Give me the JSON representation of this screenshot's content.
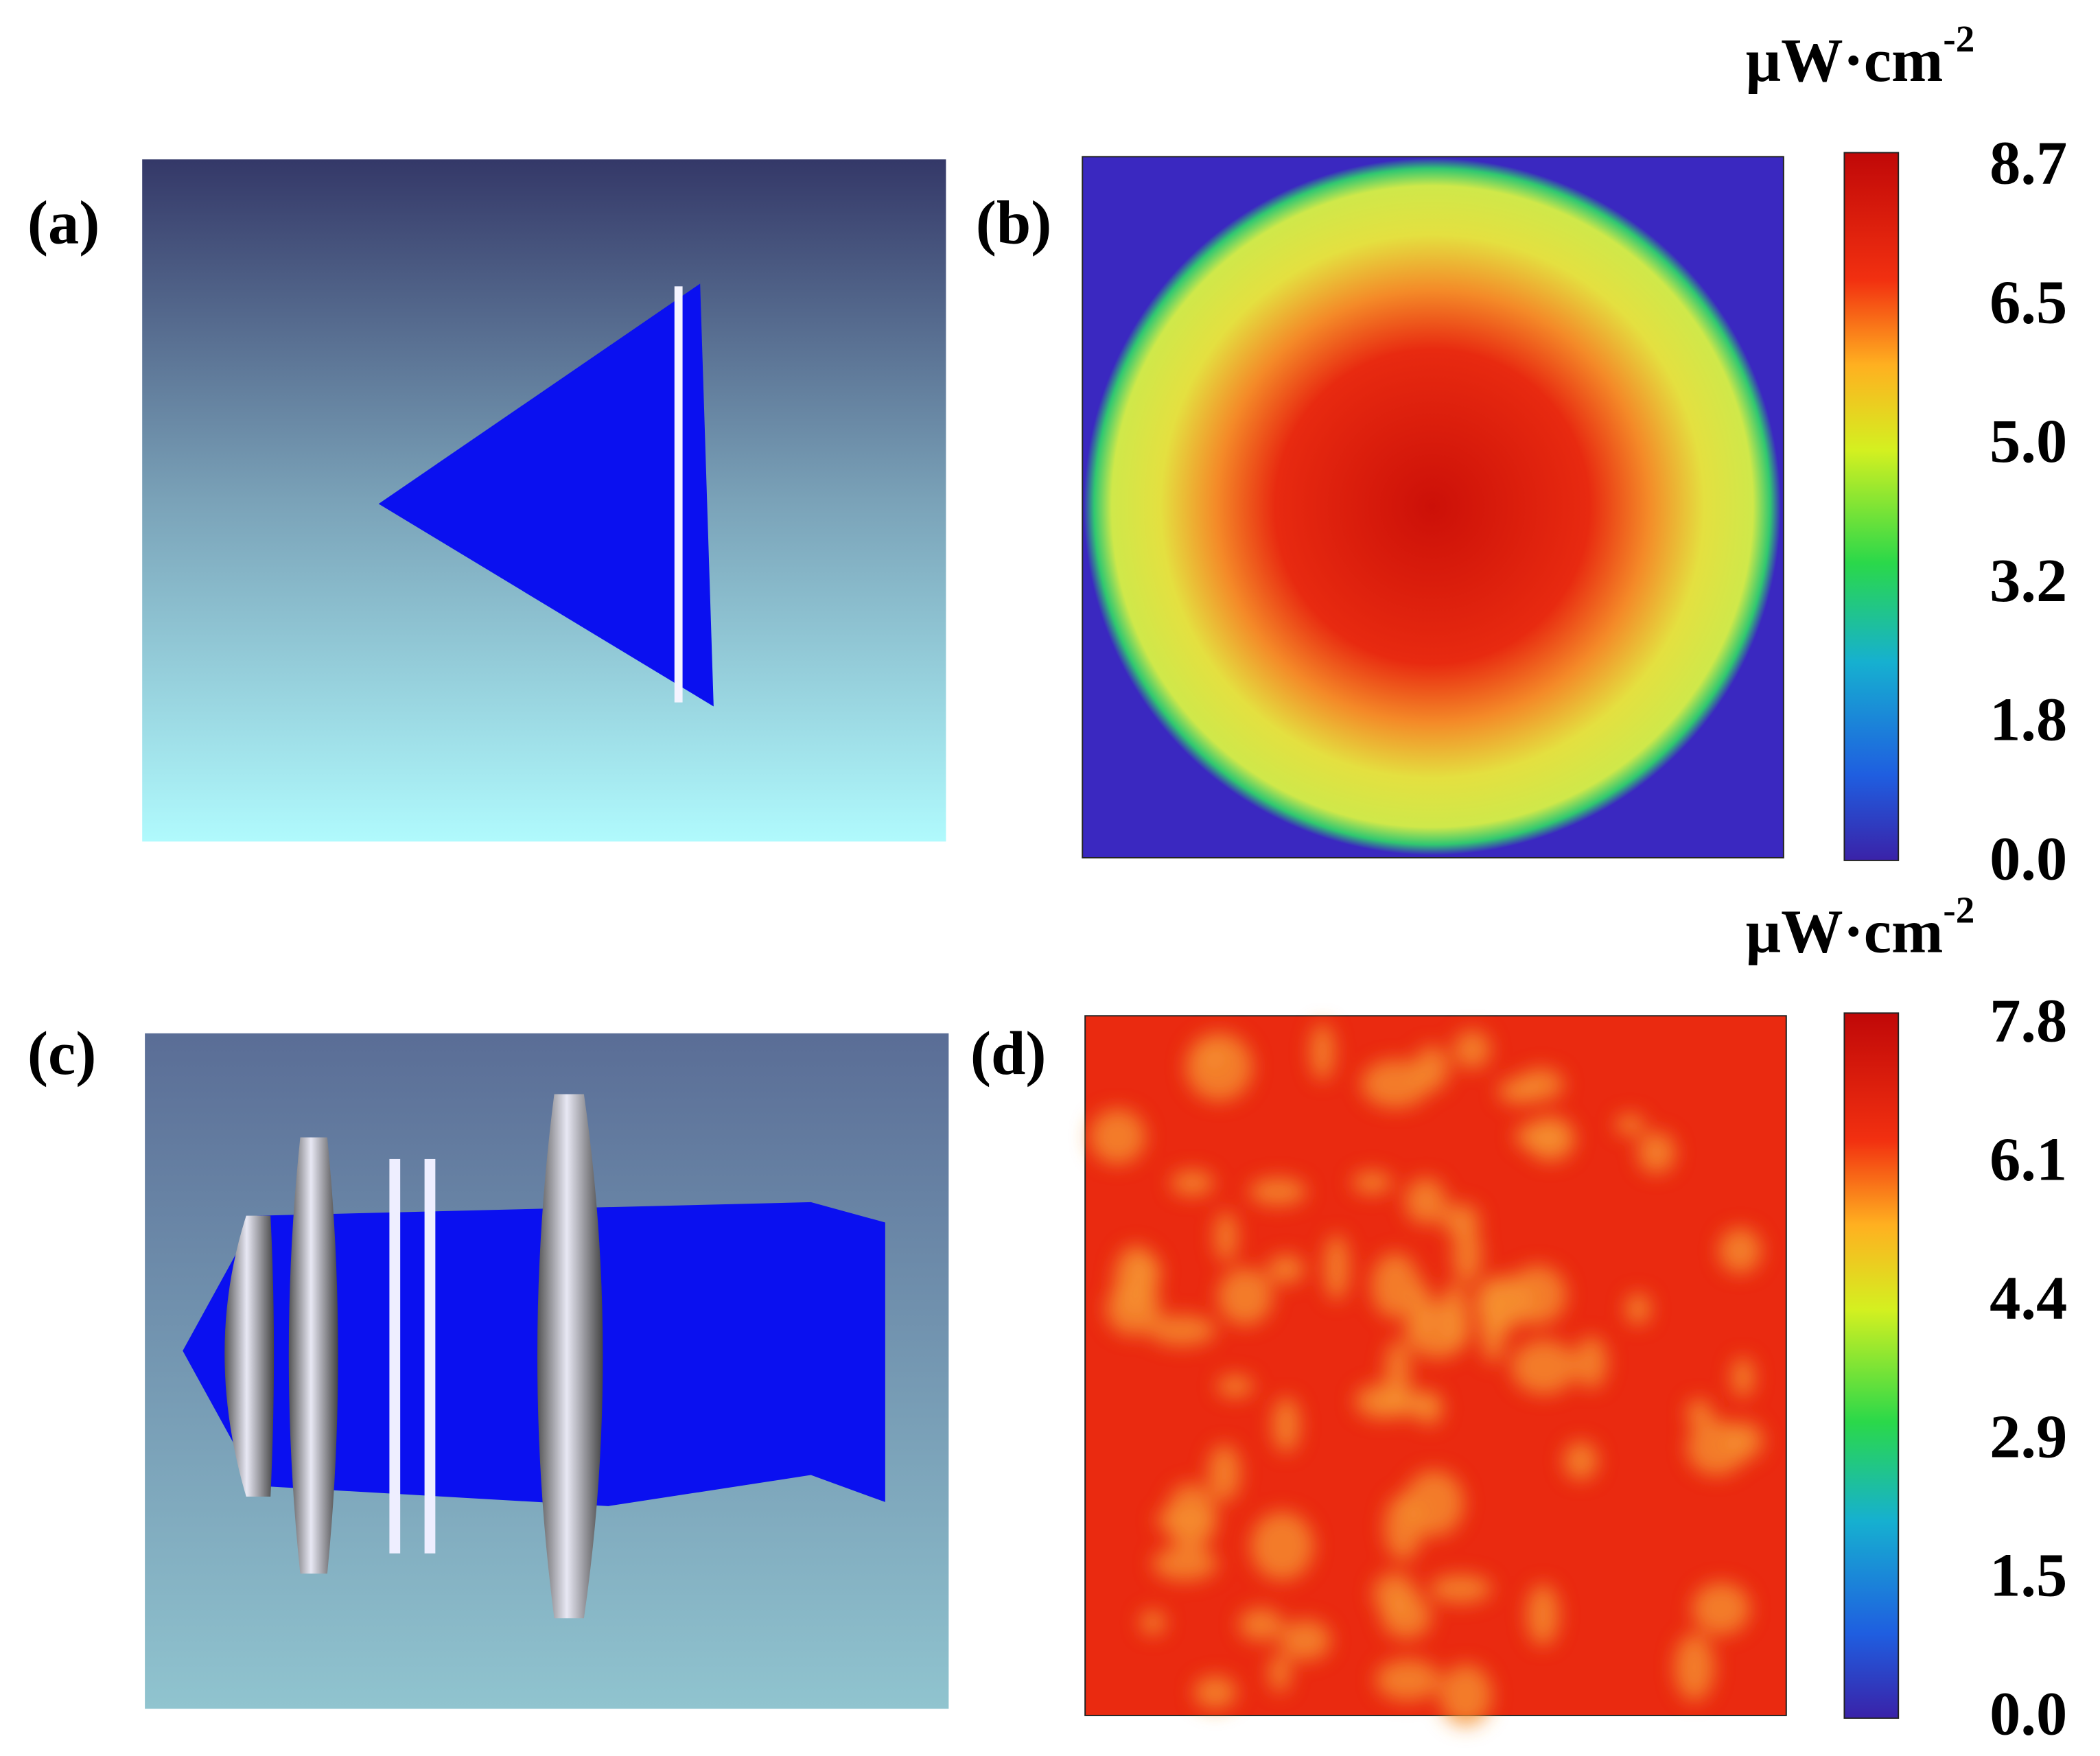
{
  "panels": [
    {
      "label": "(a)"
    },
    {
      "label": "(b)",
      "colorbar": {
        "unit": "μW·cm",
        "unit_exponent": "-2",
        "ticks": [
          "8.7",
          "6.5",
          "5.0",
          "3.2",
          "1.8",
          "0.0"
        ]
      }
    },
    {
      "label": "(c)"
    },
    {
      "label": "(d)",
      "colorbar": {
        "unit": "μW·cm",
        "unit_exponent": "-2",
        "ticks": [
          "7.8",
          "6.1",
          "4.4",
          "2.9",
          "1.5",
          "0.0"
        ]
      }
    }
  ]
}
